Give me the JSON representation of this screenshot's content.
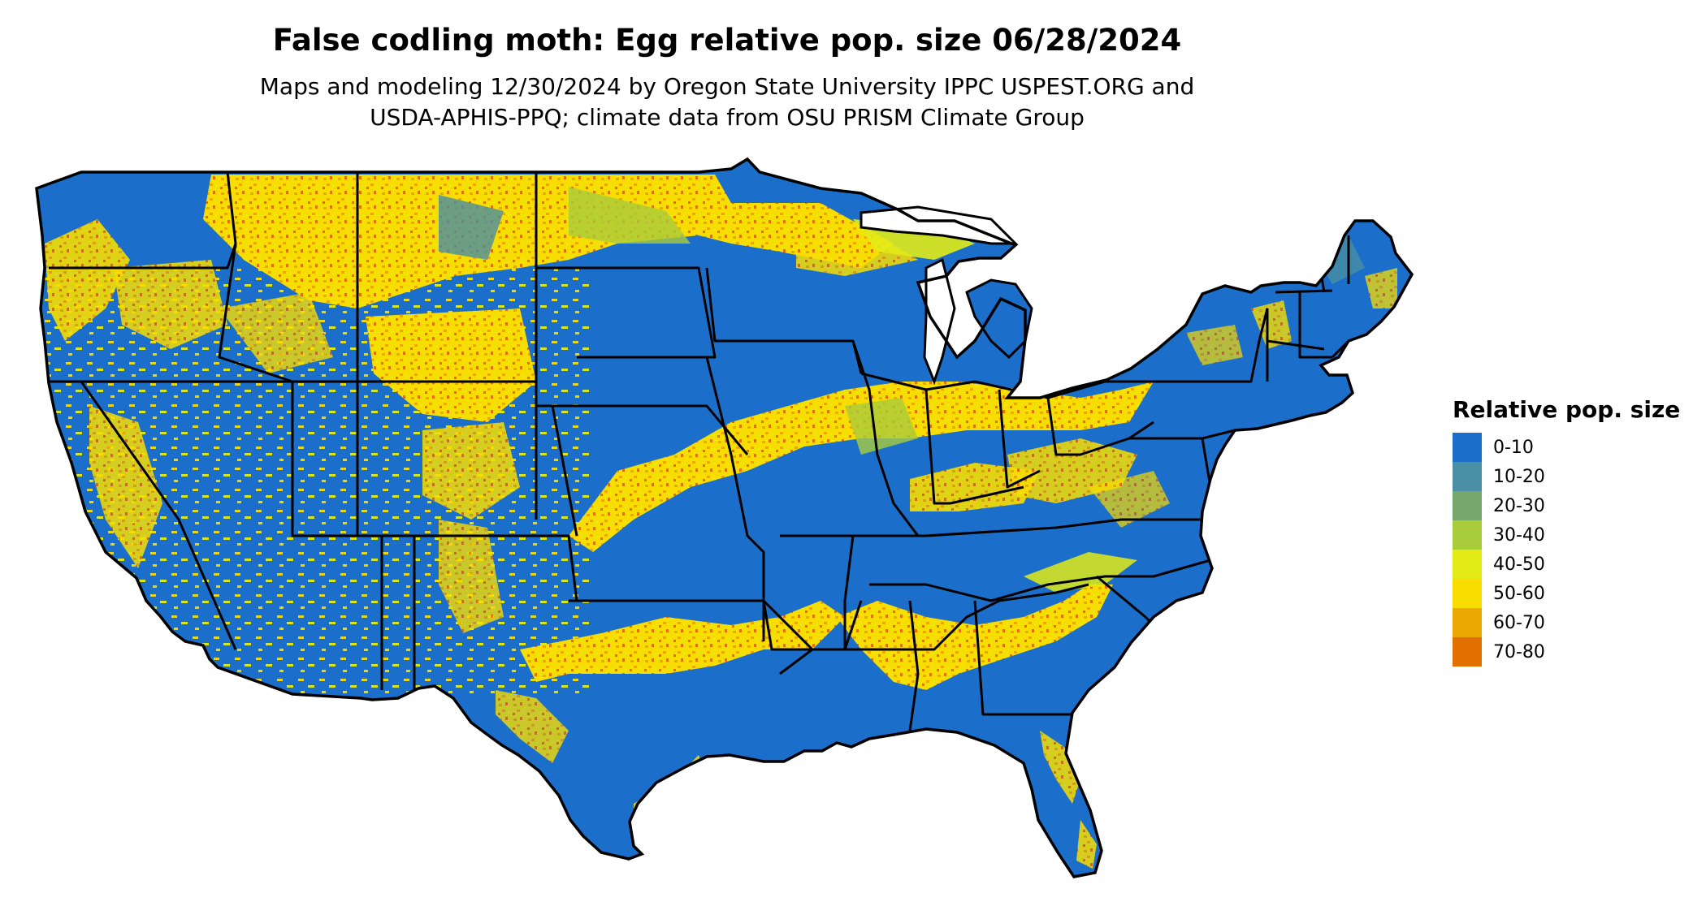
{
  "title": "False codling moth: Egg relative pop. size 06/28/2024",
  "subtitle_line1": "Maps and modeling 12/30/2024 by Oregon State University IPPC USPEST.ORG and",
  "subtitle_line2": "USDA-APHIS-PPQ; climate data from OSU PRISM Climate Group",
  "legend": {
    "title": "Relative pop. size",
    "items": [
      {
        "label": "0-10",
        "color": "#1b6fca"
      },
      {
        "label": "10-20",
        "color": "#4a8fa3"
      },
      {
        "label": "20-30",
        "color": "#76a86e"
      },
      {
        "label": "30-40",
        "color": "#a9cc3c"
      },
      {
        "label": "40-50",
        "color": "#e2eb18"
      },
      {
        "label": "50-60",
        "color": "#f7dd00"
      },
      {
        "label": "60-70",
        "color": "#eda800"
      },
      {
        "label": "70-80",
        "color": "#e36f00"
      }
    ]
  },
  "map": {
    "region": "Contiguous United States",
    "boundaries": "state",
    "background_category": "0-10",
    "border_color": "#000000"
  }
}
